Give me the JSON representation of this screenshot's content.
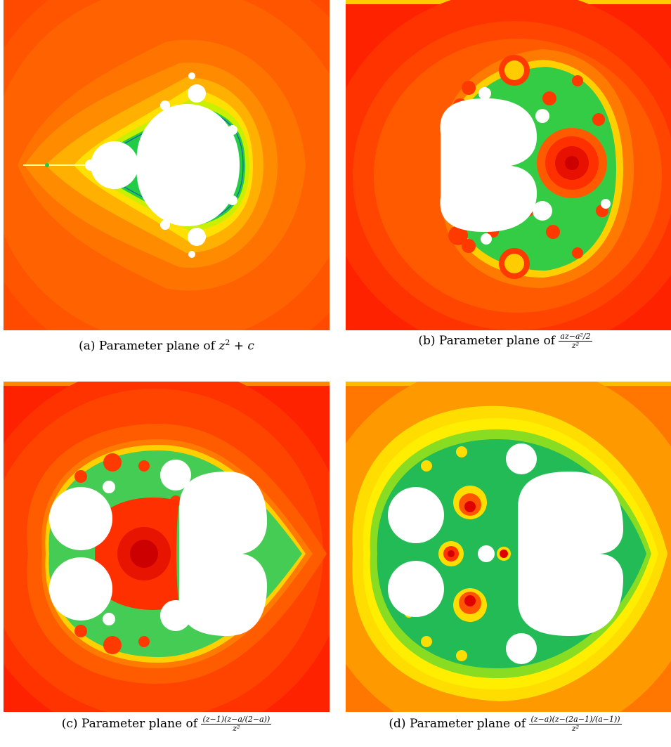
{
  "colors": {
    "outer_red": "#ff2a00",
    "orange": "#ff5a00",
    "light_orange": "#ff8c00",
    "yellow": "#ffee00",
    "green": "#22cc44",
    "blue": "#1f3fcf",
    "set_white": "#ffffff",
    "deep_red": "#d60000"
  },
  "panels": {
    "a": {
      "caption_label": "(a)",
      "caption_text": "Parameter plane of ",
      "caption_math": "z",
      "caption_sup": "2",
      "caption_rest": " + c"
    },
    "b": {
      "caption_label": "(b)",
      "caption_text": "Parameter plane of ",
      "frac_num": "az−a²/2",
      "frac_den": "z²"
    },
    "c": {
      "caption_label": "(c)",
      "caption_text": "Parameter plane of ",
      "frac_num": "(z−1)(z−a/(2−a))",
      "frac_den": "z²"
    },
    "d": {
      "caption_label": "(d)",
      "caption_text": "Parameter plane of ",
      "frac_num": "(z−a)(z−(2a−1)/(a−1))",
      "frac_den": "z²"
    }
  }
}
